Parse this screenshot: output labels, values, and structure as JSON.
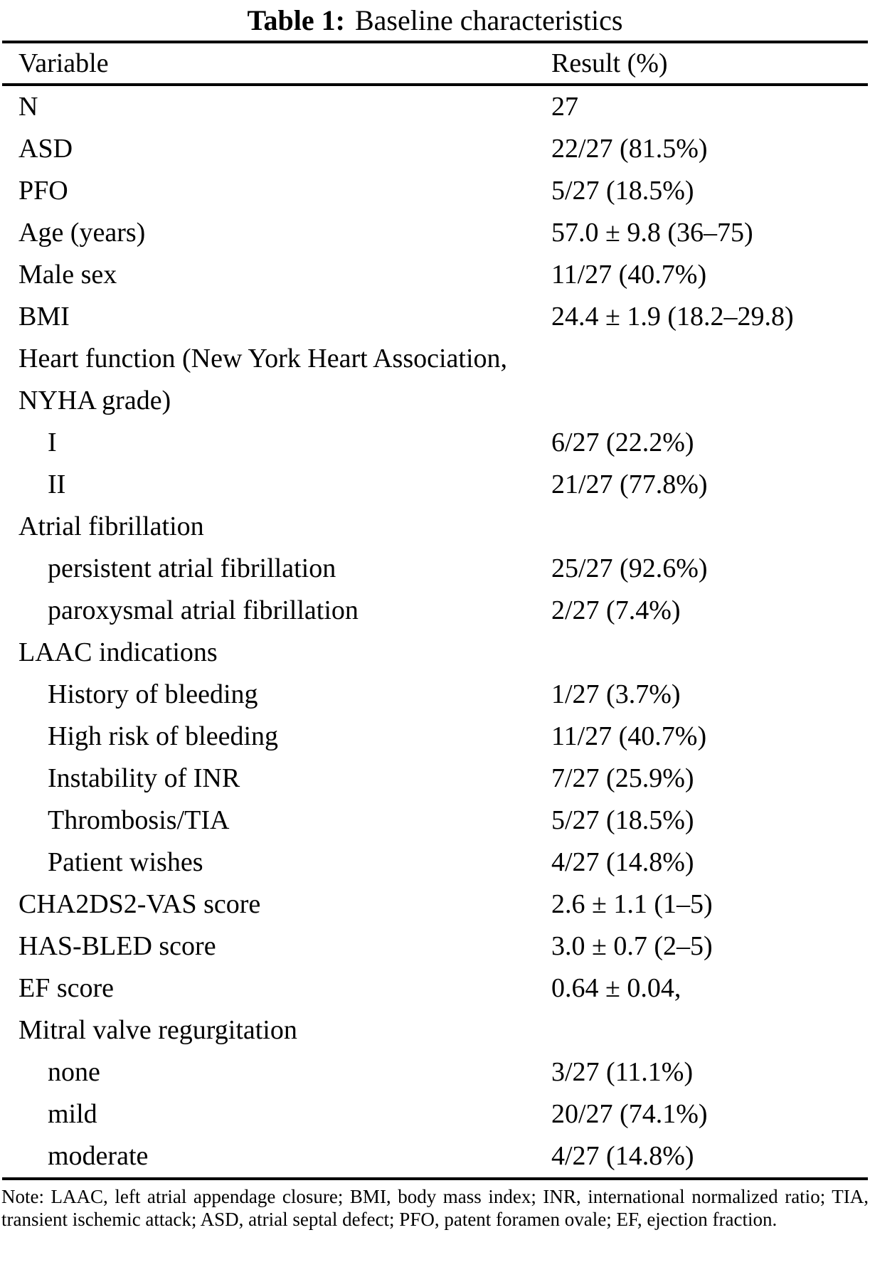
{
  "title": {
    "prefix": "Table 1:",
    "text": "Baseline characteristics"
  },
  "header": {
    "variable": "Variable",
    "result": "Result (%)"
  },
  "rows": [
    {
      "variable": "N",
      "result": "27",
      "indent": 0
    },
    {
      "variable": "ASD",
      "result": "22/27 (81.5%)",
      "indent": 0
    },
    {
      "variable": "PFO",
      "result": "5/27 (18.5%)",
      "indent": 0
    },
    {
      "variable": "Age (years)",
      "result": "57.0 ± 9.8 (36–75)",
      "indent": 0
    },
    {
      "variable": "Male sex",
      "result": "11/27 (40.7%)",
      "indent": 0
    },
    {
      "variable": "BMI",
      "result": "24.4 ± 1.9 (18.2–29.8)",
      "indent": 0
    },
    {
      "variable": "Heart function (New York Heart Association, NYHA grade)",
      "result": "",
      "indent": 0
    },
    {
      "variable": "I",
      "result": "6/27 (22.2%)",
      "indent": 1
    },
    {
      "variable": "II",
      "result": "21/27 (77.8%)",
      "indent": 1
    },
    {
      "variable": "Atrial fibrillation",
      "result": "",
      "indent": 0
    },
    {
      "variable": "persistent atrial fibrillation",
      "result": "25/27 (92.6%)",
      "indent": 1
    },
    {
      "variable": "paroxysmal atrial fibrillation",
      "result": "2/27 (7.4%)",
      "indent": 1
    },
    {
      "variable": "LAAC indications",
      "result": "",
      "indent": 0
    },
    {
      "variable": "History of bleeding",
      "result": "1/27 (3.7%)",
      "indent": 1
    },
    {
      "variable": "High risk of bleeding",
      "result": "11/27 (40.7%)",
      "indent": 1
    },
    {
      "variable": "Instability of INR",
      "result": "7/27 (25.9%)",
      "indent": 1
    },
    {
      "variable": "Thrombosis/TIA",
      "result": "5/27 (18.5%)",
      "indent": 1
    },
    {
      "variable": "Patient wishes",
      "result": "4/27 (14.8%)",
      "indent": 1
    },
    {
      "variable": "CHA2DS2-VAS score",
      "result": "2.6 ± 1.1 (1–5)",
      "indent": 0
    },
    {
      "variable": "HAS-BLED score",
      "result": "3.0 ± 0.7 (2–5)",
      "indent": 0
    },
    {
      "variable": "EF score",
      "result": "0.64 ± 0.04,",
      "indent": 0
    },
    {
      "variable": "Mitral valve regurgitation",
      "result": "",
      "indent": 0
    },
    {
      "variable": "none",
      "result": "3/27 (11.1%)",
      "indent": 1
    },
    {
      "variable": "mild",
      "result": "20/27 (74.1%)",
      "indent": 1
    },
    {
      "variable": "moderate",
      "result": "4/27 (14.8%)",
      "indent": 1
    }
  ],
  "note": "Note: LAAC, left atrial appendage closure; BMI, body mass index; INR, international normalized ratio; TIA, transient ischemic attack; ASD, atrial septal defect; PFO, patent foramen ovale; EF, ejection fraction.",
  "colors": {
    "text": "#000000",
    "background": "#ffffff",
    "rule": "#000000"
  }
}
